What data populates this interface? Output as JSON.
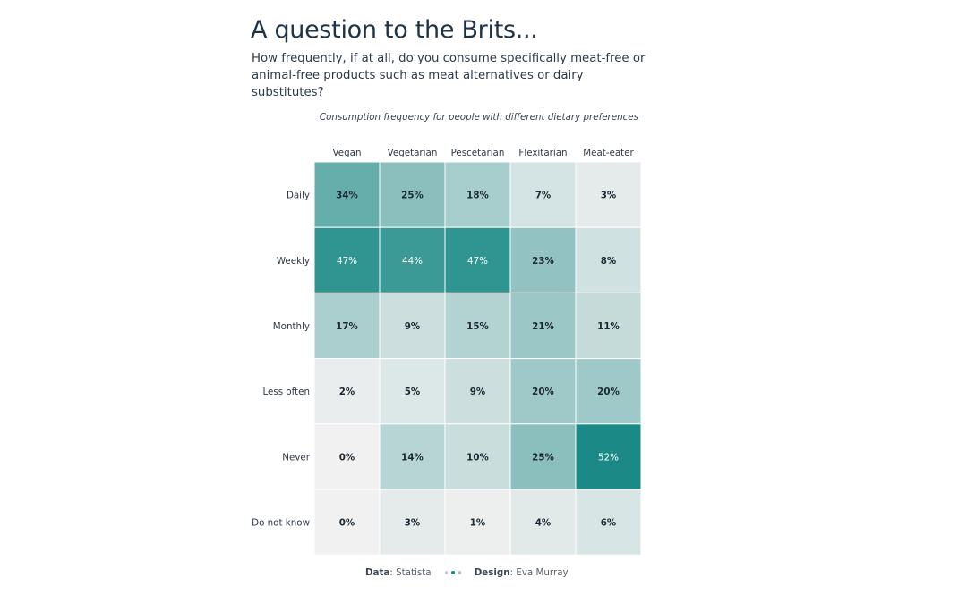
{
  "title": "A question to the Brits...",
  "subtitle": "How frequently, if at all, do you consume specifically meat-free or animal-free products such as meat alternatives or dairy substitutes?",
  "caption": "Consumption frequency for people with different dietary preferences",
  "footer": {
    "data_label": "Data",
    "data_source": ": Statista",
    "design_label": "Design",
    "designer": ": Eva Murray",
    "dot_colors": [
      "#c7cdd2",
      "#1b8a86",
      "#c9b2c8"
    ]
  },
  "colors": {
    "low": "#f1f1f1",
    "high": "#1b8a86",
    "text_dark": "#1c2833",
    "text_light": "#ffffff"
  },
  "chart_data": {
    "type": "heatmap",
    "columns": [
      "Vegan",
      "Vegetarian",
      "Pescetarian",
      "Flexitarian",
      "Meat-eater"
    ],
    "rows": [
      "Daily",
      "Weekly",
      "Monthly",
      "Less often",
      "Never",
      "Do not know"
    ],
    "values": [
      [
        34,
        25,
        18,
        7,
        3
      ],
      [
        47,
        44,
        47,
        23,
        8
      ],
      [
        17,
        9,
        15,
        21,
        11
      ],
      [
        2,
        5,
        9,
        20,
        20
      ],
      [
        0,
        14,
        10,
        25,
        52
      ],
      [
        0,
        3,
        1,
        4,
        6
      ]
    ],
    "value_suffix": "%",
    "color_scale_max": 52
  }
}
